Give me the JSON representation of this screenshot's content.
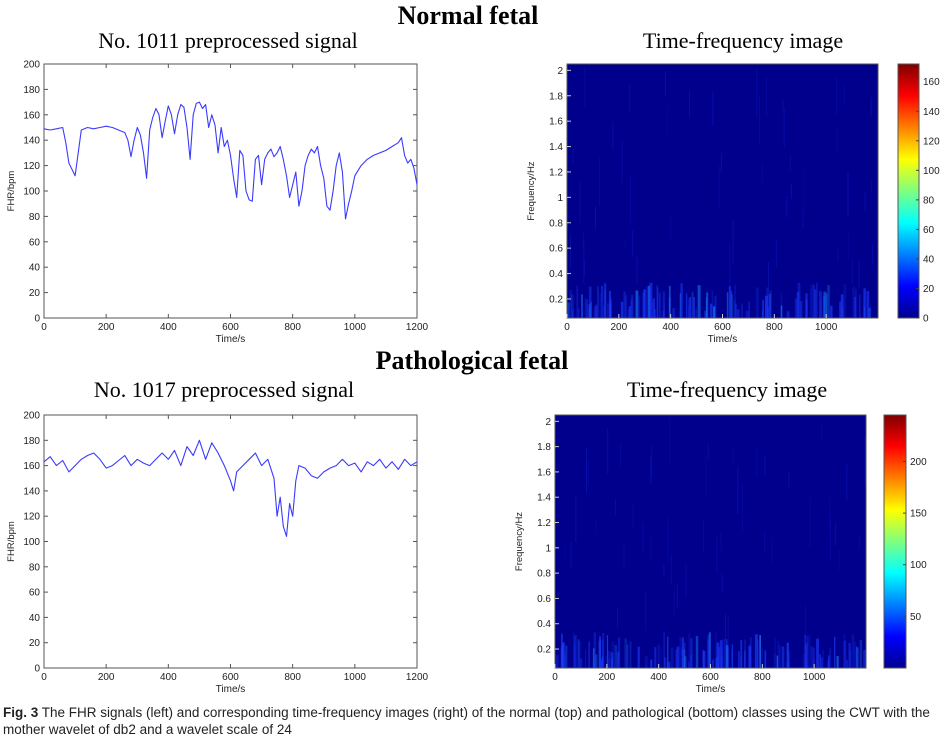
{
  "sections": [
    {
      "title": "Normal fetal"
    },
    {
      "title": "Pathological fetal"
    }
  ],
  "chart_data": [
    {
      "type": "line",
      "title": "No. 1011 preprocessed signal",
      "xlabel": "Time/s",
      "ylabel": "FHR/bpm",
      "xlim": [
        0,
        1200
      ],
      "ylim": [
        0,
        200
      ],
      "xticks": [
        0,
        200,
        400,
        600,
        800,
        1000,
        1200
      ],
      "yticks": [
        0,
        20,
        40,
        60,
        80,
        100,
        120,
        140,
        160,
        180,
        200
      ],
      "color": "#3a3aff",
      "series": [
        {
          "x": [
            0,
            20,
            40,
            60,
            70,
            80,
            90,
            100,
            110,
            120,
            140,
            160,
            180,
            200,
            220,
            240,
            260,
            270,
            280,
            290,
            300,
            310,
            320,
            330,
            340,
            350,
            360,
            370,
            380,
            390,
            400,
            410,
            420,
            430,
            440,
            450,
            460,
            470,
            480,
            490,
            500,
            510,
            520,
            530,
            540,
            550,
            560,
            570,
            580,
            590,
            600,
            610,
            620,
            630,
            640,
            650,
            660,
            670,
            680,
            690,
            700,
            710,
            720,
            730,
            740,
            750,
            760,
            770,
            780,
            790,
            800,
            810,
            820,
            830,
            840,
            850,
            860,
            870,
            880,
            890,
            900,
            910,
            920,
            930,
            940,
            950,
            960,
            970,
            980,
            990,
            1000,
            1020,
            1040,
            1060,
            1080,
            1100,
            1120,
            1140,
            1150,
            1160,
            1170,
            1180,
            1190,
            1200
          ],
          "y": [
            149,
            148,
            149,
            150,
            138,
            122,
            117,
            112,
            130,
            148,
            150,
            149,
            150,
            151,
            150,
            148,
            146,
            140,
            127,
            140,
            150,
            144,
            130,
            110,
            148,
            158,
            165,
            160,
            142,
            155,
            167,
            160,
            145,
            160,
            168,
            166,
            150,
            125,
            160,
            169,
            170,
            165,
            168,
            150,
            160,
            152,
            130,
            150,
            135,
            140,
            128,
            110,
            95,
            132,
            128,
            100,
            93,
            92,
            125,
            128,
            105,
            125,
            130,
            133,
            127,
            130,
            135,
            125,
            112,
            95,
            105,
            115,
            88,
            100,
            120,
            128,
            133,
            130,
            135,
            120,
            110,
            88,
            85,
            100,
            120,
            130,
            115,
            78,
            90,
            100,
            112,
            120,
            125,
            128,
            130,
            132,
            135,
            138,
            142,
            128,
            122,
            125,
            118,
            105
          ]
        }
      ]
    },
    {
      "type": "heatmap",
      "title": "Time-frequency image",
      "xlabel": "Time/s",
      "ylabel": "Frequency/Hz",
      "xlim": [
        0,
        1200
      ],
      "ylim": [
        0.05,
        2.05
      ],
      "xticks": [
        0,
        200,
        400,
        600,
        800,
        1000
      ],
      "yticks": [
        0.2,
        0.4,
        0.6,
        0.8,
        1,
        1.2,
        1.4,
        1.6,
        1.8,
        2
      ],
      "colorbar_ticks": [
        0,
        20,
        40,
        60,
        80,
        100,
        120,
        140,
        160
      ],
      "colorbar_range": [
        0,
        172
      ],
      "colormap": "jet"
    },
    {
      "type": "line",
      "title": "No. 1017 preprocessed signal",
      "xlabel": "Time/s",
      "ylabel": "FHR/bpm",
      "xlim": [
        0,
        1200
      ],
      "ylim": [
        0,
        200
      ],
      "xticks": [
        0,
        200,
        400,
        600,
        800,
        1000,
        1200
      ],
      "yticks": [
        0,
        20,
        40,
        60,
        80,
        100,
        120,
        140,
        160,
        180,
        200
      ],
      "color": "#3a3aff",
      "series": [
        {
          "x": [
            0,
            20,
            40,
            60,
            80,
            100,
            120,
            140,
            160,
            180,
            200,
            220,
            240,
            260,
            280,
            300,
            320,
            340,
            360,
            380,
            400,
            420,
            440,
            460,
            480,
            500,
            520,
            540,
            560,
            580,
            600,
            610,
            620,
            640,
            660,
            680,
            700,
            720,
            740,
            750,
            760,
            770,
            780,
            790,
            800,
            810,
            820,
            840,
            860,
            880,
            900,
            920,
            940,
            960,
            980,
            1000,
            1020,
            1040,
            1060,
            1080,
            1100,
            1120,
            1140,
            1160,
            1180,
            1200
          ],
          "y": [
            163,
            167,
            160,
            164,
            155,
            160,
            165,
            168,
            170,
            165,
            158,
            160,
            164,
            168,
            160,
            165,
            162,
            160,
            165,
            170,
            165,
            172,
            160,
            175,
            168,
            180,
            165,
            178,
            170,
            160,
            148,
            140,
            155,
            160,
            165,
            170,
            160,
            165,
            150,
            120,
            135,
            112,
            104,
            130,
            120,
            148,
            160,
            158,
            152,
            150,
            155,
            158,
            160,
            165,
            160,
            162,
            155,
            163,
            160,
            165,
            158,
            163,
            157,
            165,
            160,
            163
          ]
        }
      ]
    },
    {
      "type": "heatmap",
      "title": "Time-frequency image",
      "xlabel": "Time/s",
      "ylabel": "Frequency/Hz",
      "xlim": [
        0,
        1200
      ],
      "ylim": [
        0.05,
        2.05
      ],
      "xticks": [
        0,
        200,
        400,
        600,
        800,
        1000
      ],
      "yticks": [
        0.2,
        0.4,
        0.6,
        0.8,
        1,
        1.2,
        1.4,
        1.6,
        1.8,
        2
      ],
      "colorbar_ticks": [
        50,
        100,
        150,
        200
      ],
      "colorbar_range": [
        0,
        245
      ],
      "colormap": "jet"
    }
  ],
  "caption": {
    "label": "Fig. 3",
    "text": " The FHR signals (left) and corresponding time-frequency images (right) of the normal (top) and pathological (bottom) classes using the CWT with the mother wavelet of db2 and a wavelet scale of 24"
  }
}
